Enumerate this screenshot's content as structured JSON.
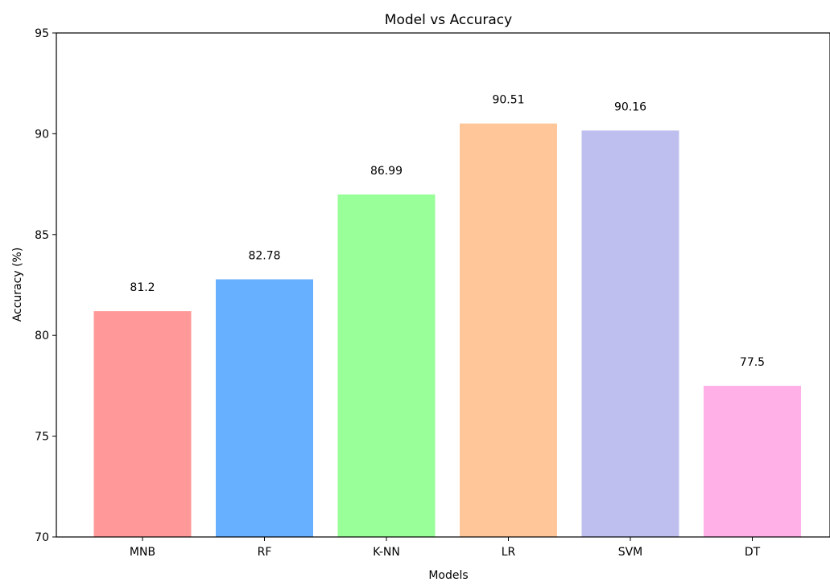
{
  "chart_data": {
    "type": "bar",
    "title": "Model vs Accuracy",
    "xlabel": "Models",
    "ylabel": "Accuracy (%)",
    "categories": [
      "MNB",
      "RF",
      "K-NN",
      "LR",
      "SVM",
      "DT"
    ],
    "values": [
      81.2,
      82.78,
      86.99,
      90.51,
      90.16,
      77.5
    ],
    "data_labels": [
      "81.2",
      "82.78",
      "86.99",
      "90.51",
      "90.16",
      "77.5"
    ],
    "colors": [
      "#ff9999",
      "#66b0ff",
      "#99ff99",
      "#ffc799",
      "#bfbfef",
      "#ffb0e6"
    ],
    "ylim": [
      70,
      95
    ],
    "yticks": [
      70,
      75,
      80,
      85,
      90,
      95
    ],
    "ytick_labels": [
      "70",
      "75",
      "80",
      "85",
      "90",
      "95"
    ],
    "grid": false,
    "legend": "none"
  }
}
